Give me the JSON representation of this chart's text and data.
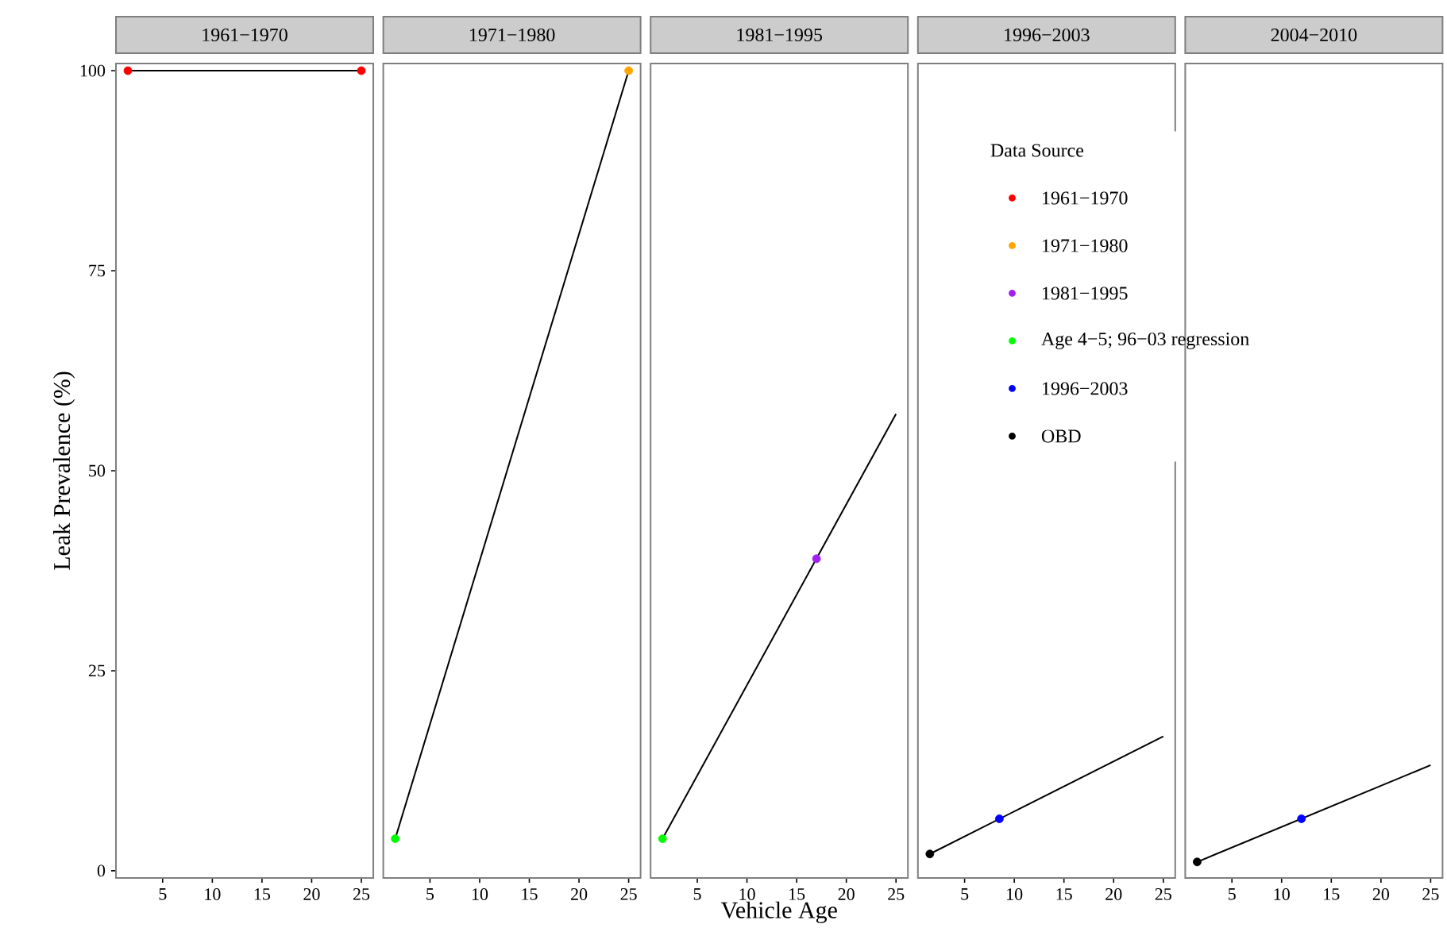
{
  "chart_data": [
    {
      "type": "line",
      "title": "1961−1970",
      "legend": "right",
      "ylabel": "Leak Prevalence (%)",
      "xlim": [
        0.3,
        26.2
      ],
      "xticks": [
        5,
        10,
        15,
        20,
        25
      ],
      "ylim": [
        -0.9,
        100.9
      ],
      "yticks": [
        0,
        25,
        50,
        75,
        100
      ],
      "series": [
        {
          "type": "line",
          "color": "#000000",
          "marker": "none",
          "x": [
            1.5,
            25
          ],
          "values": [
            100,
            100
          ]
        },
        {
          "type": "scatter",
          "name": "1961−1970",
          "color": "#ff0000",
          "marker": "circle",
          "x": [
            1.5,
            25
          ],
          "values": [
            100,
            100
          ]
        }
      ]
    },
    {
      "type": "line",
      "title": "1971−1980",
      "legend": "right",
      "xlim": [
        0.3,
        26.2
      ],
      "xticks": [
        5,
        10,
        15,
        20,
        25
      ],
      "ylim": [
        -0.9,
        100.9
      ],
      "yticks": [
        0,
        25,
        50,
        75,
        100
      ],
      "tick_labels": "x",
      "series": [
        {
          "type": "line",
          "color": "#000000",
          "marker": "none",
          "x": [
            1.5,
            25
          ],
          "values": [
            4,
            100
          ]
        },
        {
          "type": "scatter",
          "name": "1971−1980",
          "color": "#ffa500",
          "marker": "circle",
          "x": [
            25
          ],
          "values": [
            100
          ]
        },
        {
          "type": "scatter",
          "color": "#00ff00",
          "marker": "circle",
          "x": [
            1.5
          ],
          "values": [
            4
          ]
        }
      ]
    },
    {
      "type": "line",
      "title": "1981−1995",
      "legend": "right",
      "xlabel": "Vehicle Age",
      "xlim": [
        0.3,
        26.2
      ],
      "xticks": [
        5,
        10,
        15,
        20,
        25
      ],
      "ylim": [
        -0.9,
        100.9
      ],
      "yticks": [
        0,
        25,
        50,
        75,
        100
      ],
      "tick_labels": "x",
      "series": [
        {
          "type": "line",
          "color": "#000000",
          "marker": "none",
          "x": [
            1.5,
            25
          ],
          "values": [
            4,
            57.1
          ]
        },
        {
          "type": "scatter",
          "name": "1981−1995",
          "color": "#a020f0",
          "marker": "circle",
          "x": [
            17
          ],
          "values": [
            39
          ]
        },
        {
          "type": "scatter",
          "name": "Age 4−5; 96−03 regression",
          "color": "#00ff00",
          "marker": "circle",
          "x": [
            1.5
          ],
          "values": [
            4
          ]
        }
      ]
    },
    {
      "type": "line",
      "title": "1996−2003",
      "legend": "right",
      "legend_title": "Data Source",
      "xlim": [
        0.3,
        26.2
      ],
      "xticks": [
        5,
        10,
        15,
        20,
        25
      ],
      "ylim": [
        -0.9,
        100.9
      ],
      "yticks": [
        0,
        25,
        50,
        75,
        100
      ],
      "tick_labels": "x",
      "series": [
        {
          "type": "line",
          "color": "#000000",
          "marker": "none",
          "x": [
            1.5,
            25
          ],
          "values": [
            2.1,
            16.8
          ]
        },
        {
          "type": "scatter",
          "name": "1996−2003",
          "color": "#0000ff",
          "marker": "circle",
          "x": [
            8.5
          ],
          "values": [
            6.5
          ]
        },
        {
          "type": "scatter",
          "name": "OBD",
          "color": "#000000",
          "marker": "circle",
          "x": [
            1.5
          ],
          "values": [
            2.1
          ]
        }
      ]
    },
    {
      "type": "line",
      "title": "2004−2010",
      "xlim": [
        0.3,
        26.2
      ],
      "xticks": [
        5,
        10,
        15,
        20,
        25
      ],
      "ylim": [
        -0.9,
        100.9
      ],
      "yticks": [
        0,
        25,
        50,
        75,
        100
      ],
      "tick_labels": "x",
      "series": [
        {
          "type": "line",
          "color": "#000000",
          "marker": "none",
          "x": [
            1.5,
            25
          ],
          "values": [
            1.1,
            13.2
          ]
        },
        {
          "type": "scatter",
          "color": "#0000ff",
          "marker": "circle",
          "x": [
            12
          ],
          "values": [
            6.5
          ]
        },
        {
          "type": "scatter",
          "color": "#000000",
          "marker": "circle",
          "x": [
            1.5
          ],
          "values": [
            1.1
          ]
        }
      ]
    }
  ]
}
